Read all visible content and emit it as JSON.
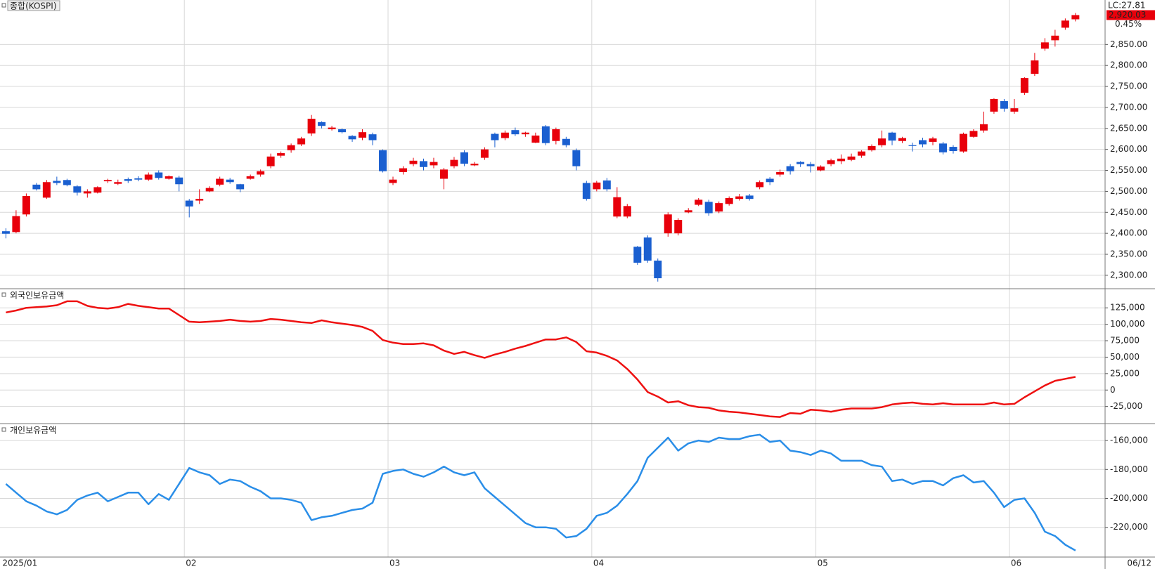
{
  "chart_data": [
    {
      "type": "candlestick",
      "title": "종합(KOSPI)",
      "categories": [
        "2025/01",
        null,
        null,
        null,
        null,
        null,
        null,
        null,
        null,
        null,
        null,
        null,
        null,
        null,
        null,
        null,
        null,
        null,
        "02",
        null,
        null,
        null,
        null,
        null,
        null,
        null,
        null,
        null,
        null,
        null,
        null,
        null,
        null,
        null,
        null,
        null,
        null,
        null,
        "03",
        null,
        null,
        null,
        null,
        null,
        null,
        null,
        null,
        null,
        null,
        null,
        null,
        null,
        null,
        null,
        null,
        null,
        null,
        null,
        "04",
        null,
        null,
        null,
        null,
        null,
        null,
        null,
        null,
        null,
        null,
        null,
        null,
        null,
        null,
        null,
        null,
        null,
        null,
        null,
        null,
        null,
        "05",
        null,
        null,
        null,
        null,
        null,
        null,
        null,
        null,
        null,
        null,
        null,
        null,
        null,
        null,
        null,
        null,
        null,
        null,
        "06",
        null,
        null,
        null,
        null,
        null,
        "06/12"
      ],
      "open": [
        2405,
        2403,
        2445,
        2516,
        2485,
        2525,
        2527,
        2512,
        2495,
        2497,
        2524,
        2518,
        2529,
        2531,
        2528,
        2545,
        2530,
        2533,
        2478,
        2478,
        2500,
        2516,
        2528,
        2517,
        2530,
        2540,
        2560,
        2585,
        2598,
        2612,
        2638,
        2665,
        2648,
        2648,
        2632,
        2628,
        2636,
        2598,
        2520,
        2546,
        2565,
        2572,
        2562,
        2530,
        2560,
        2593,
        2562,
        2580,
        2637,
        2627,
        2646,
        2636,
        2616,
        2655,
        2620,
        2625,
        2598,
        2520,
        2505,
        2526,
        2440,
        2440,
        2368,
        2390,
        2335,
        2400,
        2400,
        2450,
        2468,
        2475,
        2452,
        2470,
        2482,
        2490,
        2510,
        2530,
        2540,
        2560,
        2570,
        2565,
        2550,
        2565,
        2572,
        2575,
        2585,
        2598,
        2610,
        2640,
        2620,
        2610,
        2622,
        2618,
        2614,
        2606,
        2595,
        2630,
        2645,
        2690,
        2715,
        2690,
        2735,
        2780,
        2840,
        2860,
        2890,
        2910
      ],
      "high": [
        2412,
        2455,
        2495,
        2520,
        2527,
        2535,
        2530,
        2515,
        2505,
        2512,
        2530,
        2528,
        2533,
        2536,
        2545,
        2550,
        2538,
        2537,
        2482,
        2505,
        2512,
        2535,
        2532,
        2518,
        2540,
        2552,
        2590,
        2595,
        2614,
        2630,
        2682,
        2667,
        2656,
        2650,
        2634,
        2648,
        2640,
        2600,
        2535,
        2560,
        2580,
        2578,
        2580,
        2556,
        2582,
        2598,
        2570,
        2605,
        2640,
        2645,
        2652,
        2642,
        2640,
        2658,
        2652,
        2630,
        2602,
        2525,
        2525,
        2532,
        2510,
        2470,
        2370,
        2395,
        2340,
        2450,
        2436,
        2460,
        2484,
        2480,
        2476,
        2488,
        2494,
        2494,
        2526,
        2534,
        2552,
        2565,
        2572,
        2570,
        2562,
        2578,
        2588,
        2590,
        2598,
        2612,
        2645,
        2642,
        2630,
        2616,
        2628,
        2630,
        2618,
        2610,
        2640,
        2648,
        2690,
        2722,
        2720,
        2720,
        2772,
        2830,
        2865,
        2885,
        2912,
        2925
      ],
      "low": [
        2388,
        2400,
        2440,
        2502,
        2482,
        2515,
        2512,
        2490,
        2485,
        2495,
        2520,
        2515,
        2520,
        2524,
        2525,
        2528,
        2528,
        2500,
        2438,
        2470,
        2498,
        2512,
        2518,
        2498,
        2528,
        2535,
        2555,
        2580,
        2592,
        2608,
        2632,
        2650,
        2645,
        2638,
        2618,
        2622,
        2610,
        2545,
        2515,
        2540,
        2560,
        2550,
        2555,
        2505,
        2555,
        2560,
        2560,
        2575,
        2605,
        2622,
        2632,
        2630,
        2615,
        2610,
        2612,
        2605,
        2550,
        2478,
        2500,
        2500,
        2436,
        2436,
        2325,
        2330,
        2285,
        2392,
        2395,
        2448,
        2465,
        2442,
        2448,
        2466,
        2478,
        2478,
        2505,
        2515,
        2535,
        2540,
        2558,
        2545,
        2548,
        2560,
        2565,
        2572,
        2580,
        2595,
        2605,
        2610,
        2615,
        2595,
        2605,
        2610,
        2588,
        2590,
        2592,
        2628,
        2640,
        2685,
        2690,
        2685,
        2730,
        2775,
        2835,
        2845,
        2885,
        2905
      ],
      "close": [
        2399,
        2441,
        2489,
        2505,
        2522,
        2520,
        2515,
        2497,
        2500,
        2510,
        2527,
        2522,
        2525,
        2528,
        2540,
        2532,
        2536,
        2517,
        2464,
        2482,
        2508,
        2530,
        2522,
        2505,
        2536,
        2548,
        2583,
        2591,
        2610,
        2626,
        2673,
        2656,
        2652,
        2641,
        2624,
        2641,
        2622,
        2548,
        2528,
        2555,
        2573,
        2558,
        2570,
        2552,
        2575,
        2566,
        2566,
        2600,
        2622,
        2640,
        2636,
        2640,
        2633,
        2615,
        2648,
        2610,
        2560,
        2482,
        2521,
        2505,
        2486,
        2465,
        2330,
        2335,
        2293,
        2445,
        2432,
        2455,
        2480,
        2448,
        2472,
        2484,
        2488,
        2482,
        2522,
        2522,
        2546,
        2548,
        2565,
        2560,
        2559,
        2574,
        2578,
        2583,
        2595,
        2608,
        2626,
        2621,
        2627,
        2608,
        2612,
        2626,
        2593,
        2596,
        2637,
        2644,
        2660,
        2720,
        2697,
        2698,
        2770,
        2812,
        2855,
        2871,
        2907,
        2920.03
      ],
      "up_color": "#e8000b",
      "down_color": "#1a5fd0",
      "ylim": [
        2268,
        2956
      ],
      "yticks": [
        {
          "value": 2300,
          "label": "2,300.00"
        },
        {
          "value": 2350,
          "label": "2,350.00"
        },
        {
          "value": 2400,
          "label": "2,400.00"
        },
        {
          "value": 2450,
          "label": "2,450.00"
        },
        {
          "value": 2500,
          "label": "2,500.00"
        },
        {
          "value": 2550,
          "label": "2,550.00"
        },
        {
          "value": 2600,
          "label": "2,600.00"
        },
        {
          "value": 2650,
          "label": "2,650.00"
        },
        {
          "value": 2700,
          "label": "2,700.00"
        },
        {
          "value": 2750,
          "label": "2,750.00"
        },
        {
          "value": 2800,
          "label": "2,800.00"
        },
        {
          "value": 2850,
          "label": "2,850.00"
        }
      ],
      "grid": true,
      "annotations": {
        "lc": "LC:27.81",
        "last": "2,920.03",
        "change": "0.45%"
      }
    },
    {
      "type": "line",
      "title": "외국인보유금액",
      "color": "#ee1111",
      "values": [
        118000,
        121000,
        125000,
        126000,
        127000,
        129000,
        135000,
        135000,
        128000,
        125000,
        124000,
        126000,
        131000,
        128000,
        126000,
        124000,
        124000,
        114000,
        104000,
        103000,
        104000,
        105000,
        107000,
        105000,
        104000,
        105000,
        108000,
        107000,
        105000,
        103000,
        102000,
        106000,
        103000,
        101000,
        99000,
        96000,
        90000,
        76000,
        72000,
        70000,
        70000,
        71000,
        68000,
        60000,
        55000,
        58000,
        53000,
        49000,
        54000,
        58000,
        63000,
        67000,
        72000,
        77000,
        77000,
        80000,
        73000,
        59000,
        57000,
        52000,
        45000,
        32000,
        16000,
        -3000,
        -10000,
        -19000,
        -17000,
        -23000,
        -26000,
        -27000,
        -31000,
        -33000,
        -34000,
        -36000,
        -38000,
        -40000,
        -41000,
        -35000,
        -36000,
        -30000,
        -31000,
        -33000,
        -30000,
        -28000,
        -28000,
        -28000,
        -26000,
        -22000,
        -20000,
        -19000,
        -21000,
        -22000,
        -20000,
        -22000,
        -22000,
        -22000,
        -22000,
        -19000,
        -22000,
        -21000,
        -11000,
        -2000,
        7000,
        14000,
        17000,
        20000
      ],
      "ylim": [
        -51000,
        153000
      ],
      "yticks": [
        {
          "value": -25000,
          "label": "-25,000"
        },
        0,
        {
          "value": 25000,
          "label": "25,000"
        },
        {
          "value": 50000,
          "label": "50,000"
        },
        {
          "value": 75000,
          "label": "75,000"
        },
        {
          "value": 100000,
          "label": "100,000"
        },
        {
          "value": 125000,
          "label": "125,000"
        }
      ],
      "grid": true
    },
    {
      "type": "line",
      "title": "개인보유금액",
      "color": "#2a8ee8",
      "values": [
        -190000,
        -196000,
        -202000,
        -205000,
        -209000,
        -211000,
        -208000,
        -201000,
        -198000,
        -196000,
        -202000,
        -199000,
        -196000,
        -196000,
        -204000,
        -197000,
        -201000,
        -190000,
        -179000,
        -182000,
        -184000,
        -190000,
        -187000,
        -188000,
        -192000,
        -195000,
        -200000,
        -200000,
        -201000,
        -203000,
        -215000,
        -213000,
        -212000,
        -210000,
        -208000,
        -207000,
        -203000,
        -183000,
        -181000,
        -180000,
        -183000,
        -185000,
        -182000,
        -178000,
        -182000,
        -184000,
        -182000,
        -193000,
        -199000,
        -205000,
        -211000,
        -217000,
        -220000,
        -220000,
        -221000,
        -227000,
        -226000,
        -221000,
        -212000,
        -210000,
        -205000,
        -197000,
        -188000,
        -172000,
        -165000,
        -158000,
        -167000,
        -162000,
        -160000,
        -161000,
        -158000,
        -159000,
        -159000,
        -157000,
        -156000,
        -161000,
        -160000,
        -167000,
        -168000,
        -170000,
        -167000,
        -169000,
        -174000,
        -174000,
        -174000,
        -177000,
        -178000,
        -188000,
        -187000,
        -190000,
        -188000,
        -188000,
        -191000,
        -186000,
        -184000,
        -189000,
        -188000,
        -196000,
        -206000,
        -201000,
        -200000,
        -210000,
        -223000,
        -226000,
        -232000,
        -236000
      ],
      "ylim": [
        -240500,
        -148800
      ],
      "yticks": [
        {
          "value": -160000,
          "label": "-160,000"
        },
        {
          "value": -180000,
          "label": "-180,000"
        },
        {
          "value": -200000,
          "label": "-200,000"
        },
        {
          "value": -220000,
          "label": "-220,000"
        }
      ],
      "grid": true
    }
  ]
}
